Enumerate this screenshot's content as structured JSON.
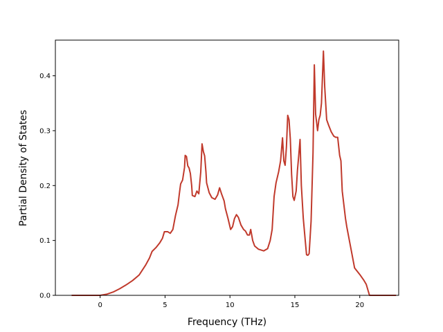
{
  "chart_data": {
    "type": "line",
    "title": "",
    "xlabel": "Frequency (THz)",
    "ylabel": "Partial Density of States",
    "xlim": [
      -3.45,
      23.0
    ],
    "ylim": [
      0.0,
      0.465
    ],
    "xticks": [
      0,
      5,
      10,
      15,
      20
    ],
    "yticks": [
      0.0,
      0.1,
      0.2,
      0.3,
      0.4
    ],
    "xtick_labels": [
      "0",
      "5",
      "10",
      "15",
      "20"
    ],
    "ytick_labels": [
      "0.0",
      "0.1",
      "0.2",
      "0.3",
      "0.4"
    ],
    "grid": false,
    "legend": null,
    "series": [
      {
        "color": "#c0392b",
        "points": [
          [
            -2.2,
            0.0
          ],
          [
            0.0,
            0.0
          ],
          [
            0.5,
            0.002
          ],
          [
            1.0,
            0.006
          ],
          [
            1.5,
            0.012
          ],
          [
            2.0,
            0.019
          ],
          [
            2.5,
            0.027
          ],
          [
            3.0,
            0.037
          ],
          [
            3.5,
            0.055
          ],
          [
            3.8,
            0.068
          ],
          [
            4.0,
            0.08
          ],
          [
            4.3,
            0.087
          ],
          [
            4.6,
            0.096
          ],
          [
            4.8,
            0.104
          ],
          [
            4.95,
            0.116
          ],
          [
            5.2,
            0.116
          ],
          [
            5.4,
            0.113
          ],
          [
            5.6,
            0.12
          ],
          [
            5.8,
            0.145
          ],
          [
            5.9,
            0.155
          ],
          [
            6.0,
            0.165
          ],
          [
            6.1,
            0.185
          ],
          [
            6.2,
            0.203
          ],
          [
            6.35,
            0.21
          ],
          [
            6.5,
            0.233
          ],
          [
            6.55,
            0.255
          ],
          [
            6.65,
            0.253
          ],
          [
            6.75,
            0.236
          ],
          [
            6.85,
            0.232
          ],
          [
            6.95,
            0.222
          ],
          [
            7.05,
            0.2
          ],
          [
            7.1,
            0.182
          ],
          [
            7.3,
            0.18
          ],
          [
            7.45,
            0.19
          ],
          [
            7.6,
            0.185
          ],
          [
            7.75,
            0.225
          ],
          [
            7.85,
            0.276
          ],
          [
            7.95,
            0.262
          ],
          [
            8.05,
            0.254
          ],
          [
            8.15,
            0.225
          ],
          [
            8.2,
            0.205
          ],
          [
            8.4,
            0.187
          ],
          [
            8.6,
            0.178
          ],
          [
            8.85,
            0.175
          ],
          [
            9.05,
            0.183
          ],
          [
            9.2,
            0.196
          ],
          [
            9.35,
            0.185
          ],
          [
            9.55,
            0.172
          ],
          [
            9.65,
            0.158
          ],
          [
            9.85,
            0.14
          ],
          [
            10.05,
            0.12
          ],
          [
            10.2,
            0.125
          ],
          [
            10.35,
            0.14
          ],
          [
            10.5,
            0.147
          ],
          [
            10.65,
            0.142
          ],
          [
            10.85,
            0.128
          ],
          [
            11.05,
            0.12
          ],
          [
            11.2,
            0.117
          ],
          [
            11.35,
            0.11
          ],
          [
            11.5,
            0.11
          ],
          [
            11.6,
            0.12
          ],
          [
            11.75,
            0.1
          ],
          [
            11.9,
            0.09
          ],
          [
            12.2,
            0.084
          ],
          [
            12.6,
            0.081
          ],
          [
            12.9,
            0.085
          ],
          [
            13.1,
            0.1
          ],
          [
            13.25,
            0.12
          ],
          [
            13.4,
            0.18
          ],
          [
            13.55,
            0.205
          ],
          [
            13.75,
            0.225
          ],
          [
            13.9,
            0.245
          ],
          [
            14.05,
            0.287
          ],
          [
            14.15,
            0.245
          ],
          [
            14.25,
            0.237
          ],
          [
            14.35,
            0.27
          ],
          [
            14.45,
            0.328
          ],
          [
            14.55,
            0.32
          ],
          [
            14.65,
            0.285
          ],
          [
            14.75,
            0.22
          ],
          [
            14.85,
            0.18
          ],
          [
            14.95,
            0.173
          ],
          [
            15.1,
            0.19
          ],
          [
            15.2,
            0.228
          ],
          [
            15.3,
            0.255
          ],
          [
            15.4,
            0.284
          ],
          [
            15.5,
            0.2
          ],
          [
            15.65,
            0.14
          ],
          [
            15.8,
            0.1
          ],
          [
            15.9,
            0.074
          ],
          [
            16.0,
            0.073
          ],
          [
            16.1,
            0.076
          ],
          [
            16.25,
            0.135
          ],
          [
            16.4,
            0.26
          ],
          [
            16.5,
            0.42
          ],
          [
            16.6,
            0.33
          ],
          [
            16.75,
            0.3
          ],
          [
            16.85,
            0.32
          ],
          [
            16.95,
            0.328
          ],
          [
            17.05,
            0.35
          ],
          [
            17.2,
            0.445
          ],
          [
            17.3,
            0.38
          ],
          [
            17.45,
            0.32
          ],
          [
            17.6,
            0.31
          ],
          [
            17.8,
            0.298
          ],
          [
            18.0,
            0.29
          ],
          [
            18.15,
            0.288
          ],
          [
            18.3,
            0.288
          ],
          [
            18.45,
            0.255
          ],
          [
            18.55,
            0.245
          ],
          [
            18.65,
            0.19
          ],
          [
            18.8,
            0.16
          ],
          [
            18.9,
            0.14
          ],
          [
            19.0,
            0.125
          ],
          [
            19.2,
            0.1
          ],
          [
            19.4,
            0.075
          ],
          [
            19.6,
            0.05
          ],
          [
            20.0,
            0.038
          ],
          [
            20.3,
            0.028
          ],
          [
            20.5,
            0.02
          ],
          [
            20.75,
            0.0
          ],
          [
            22.8,
            0.0
          ]
        ]
      }
    ]
  }
}
